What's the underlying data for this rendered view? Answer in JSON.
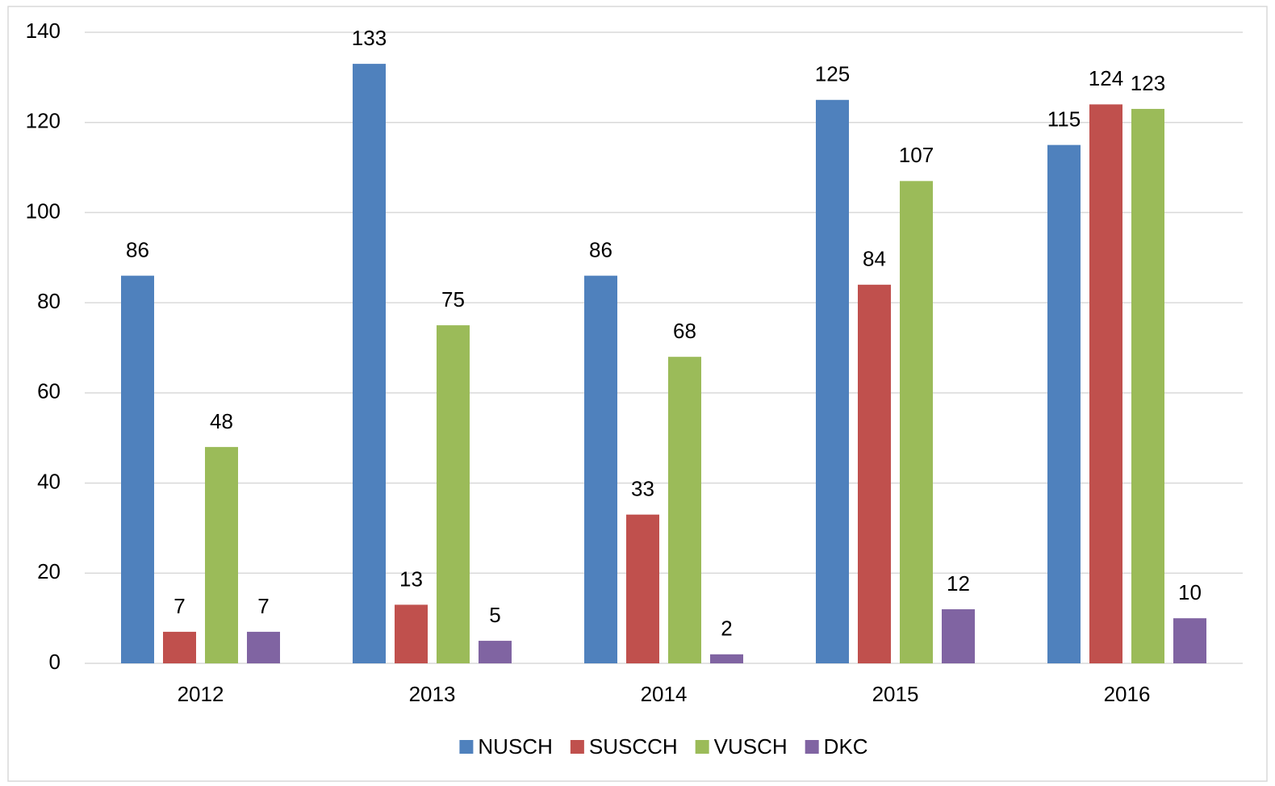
{
  "chart_data": {
    "type": "bar",
    "categories": [
      "2012",
      "2013",
      "2014",
      "2015",
      "2016"
    ],
    "series": [
      {
        "name": "NUSCH",
        "color": "#4f81bd",
        "values": [
          86,
          133,
          86,
          125,
          115
        ]
      },
      {
        "name": "SUSCCH",
        "color": "#c0504d",
        "values": [
          7,
          13,
          33,
          84,
          124
        ]
      },
      {
        "name": "VUSCH",
        "color": "#9bbb59",
        "values": [
          48,
          75,
          68,
          107,
          123
        ]
      },
      {
        "name": "DKC",
        "color": "#8064a2",
        "values": [
          7,
          5,
          2,
          12,
          10
        ]
      }
    ],
    "ylim": [
      0,
      140
    ],
    "yticks": [
      0,
      20,
      40,
      60,
      80,
      100,
      120,
      140
    ],
    "grid": true,
    "legend": "bottom",
    "data_labels": true
  }
}
